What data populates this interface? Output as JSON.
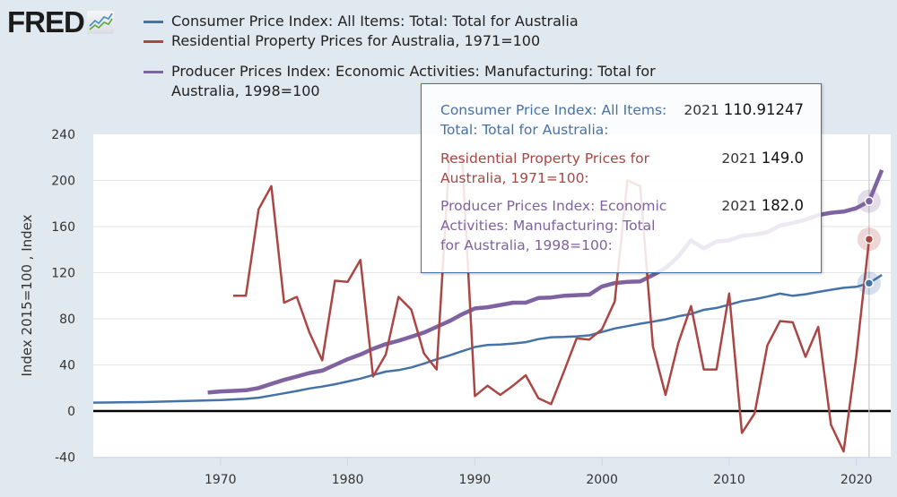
{
  "header": {
    "logo_text": "FRED",
    "logo_icon": "line-chart-icon"
  },
  "legend": [
    {
      "label": "Consumer Price Index: All Items: Total: Total for Australia",
      "color": "#4572a7"
    },
    {
      "label": "Residential Property Prices for Australia, 1971=100",
      "color": "#aa4643"
    },
    {
      "label": "Producer Prices Index: Economic Activities: Manufacturing: Total for Australia, 1998=100",
      "color": "#7f62a0"
    }
  ],
  "tooltip": {
    "rows": [
      {
        "name": "Consumer Price Index: All Items: Total: Total for Australia:",
        "year": "2021",
        "value": "110.91247",
        "color": "#4572a7"
      },
      {
        "name": "Residential Property Prices for Australia, 1971=100:",
        "year": "2021",
        "value": "149.0",
        "color": "#aa4643"
      },
      {
        "name": "Producer Prices Index: Economic Activities: Manufacturing: Total for Australia, 1998=100:",
        "year": "2021",
        "value": "182.0",
        "color": "#7f62a0"
      }
    ]
  },
  "chart_data": {
    "type": "line",
    "title": "",
    "xlabel": "",
    "ylabel": "Index 2015=100 , Index",
    "xlim": [
      1960,
      2022.7
    ],
    "ylim": [
      -40,
      240
    ],
    "yticks": [
      -40,
      0,
      40,
      80,
      120,
      160,
      200,
      240
    ],
    "xticks": [
      1970,
      1980,
      1990,
      2000,
      2010,
      2020
    ],
    "grid": true,
    "legend_position": "top",
    "highlight_x": 2021,
    "series": [
      {
        "name": "Consumer Price Index: All Items: Total: Total for Australia",
        "color": "#4572a7",
        "x": [
          1960,
          1962,
          1964,
          1966,
          1968,
          1970,
          1972,
          1973,
          1974,
          1975,
          1976,
          1977,
          1978,
          1979,
          1980,
          1981,
          1982,
          1983,
          1984,
          1985,
          1986,
          1987,
          1988,
          1989,
          1990,
          1991,
          1992,
          1993,
          1994,
          1995,
          1996,
          1997,
          1998,
          1999,
          2000,
          2001,
          2002,
          2003,
          2004,
          2005,
          2006,
          2007,
          2008,
          2009,
          2010,
          2011,
          2012,
          2013,
          2014,
          2015,
          2016,
          2017,
          2018,
          2019,
          2020,
          2021,
          2022
        ],
        "values": [
          7.3,
          7.5,
          7.8,
          8.3,
          8.9,
          9.5,
          10.6,
          11.6,
          13.4,
          15.4,
          17.4,
          19.6,
          21.2,
          23.2,
          25.6,
          28.1,
          31.2,
          34.2,
          35.5,
          37.8,
          41.1,
          44.9,
          48.2,
          51.9,
          55.5,
          57.3,
          57.6,
          58.6,
          59.7,
          62.4,
          64.0,
          64.2,
          64.8,
          65.6,
          68.6,
          71.6,
          73.6,
          75.7,
          77.5,
          79.5,
          82.2,
          84.2,
          87.8,
          89.4,
          92.3,
          95.3,
          97.0,
          99.3,
          101.8,
          100.0,
          101.3,
          103.3,
          105.2,
          106.9,
          107.7,
          110.9,
          118.0
        ]
      },
      {
        "name": "Residential Property Prices for Australia, 1971=100",
        "color": "#aa4643",
        "x": [
          1971,
          1972,
          1973,
          1974,
          1975,
          1976,
          1977,
          1978,
          1979,
          1980,
          1981,
          1982,
          1983,
          1984,
          1985,
          1986,
          1987,
          1988,
          1989,
          1990,
          1991,
          1992,
          1993,
          1994,
          1995,
          1996,
          1997,
          1998,
          1999,
          2000,
          2001,
          2002,
          2003,
          2004,
          2005,
          2006,
          2007,
          2008,
          2009,
          2010,
          2011,
          2012,
          2013,
          2014,
          2015,
          2016,
          2017,
          2018,
          2019,
          2020,
          2021
        ],
        "values": [
          100,
          100,
          175,
          195,
          94,
          99,
          68,
          44,
          113,
          112,
          131,
          30,
          49,
          99,
          88,
          50,
          36,
          220,
          220,
          13,
          22,
          14,
          22,
          31,
          11,
          6,
          34,
          63,
          62,
          71,
          95,
          200,
          195,
          56,
          14,
          59,
          91,
          36,
          36,
          102,
          -19,
          -2,
          57,
          78,
          77,
          47,
          73,
          -12,
          -35,
          48,
          149
        ]
      },
      {
        "name": "Producer Prices Index: Economic Activities: Manufacturing: Total for Australia, 1998=100",
        "color": "#7f62a0",
        "x": [
          1969,
          1970,
          1971,
          1972,
          1973,
          1974,
          1975,
          1976,
          1977,
          1978,
          1979,
          1980,
          1981,
          1982,
          1983,
          1984,
          1985,
          1986,
          1987,
          1988,
          1989,
          1990,
          1991,
          1992,
          1993,
          1994,
          1995,
          1996,
          1997,
          1998,
          1999,
          2000,
          2001,
          2002,
          2003,
          2004,
          2005,
          2006,
          2007,
          2008,
          2009,
          2010,
          2011,
          2012,
          2013,
          2014,
          2015,
          2016,
          2017,
          2018,
          2019,
          2020,
          2021,
          2022
        ],
        "values": [
          16,
          17,
          17.5,
          18,
          20,
          23.5,
          27,
          30,
          33,
          35,
          40,
          45,
          49,
          54,
          58,
          61,
          64.5,
          68,
          73,
          78,
          84,
          89,
          90,
          92,
          94,
          94,
          98,
          98.5,
          100,
          100.5,
          101,
          108,
          111,
          112,
          112.5,
          118,
          124,
          134,
          148,
          141,
          147,
          148,
          152,
          153,
          155,
          161,
          163,
          166,
          170,
          172,
          173,
          176,
          182,
          209
        ]
      }
    ]
  }
}
